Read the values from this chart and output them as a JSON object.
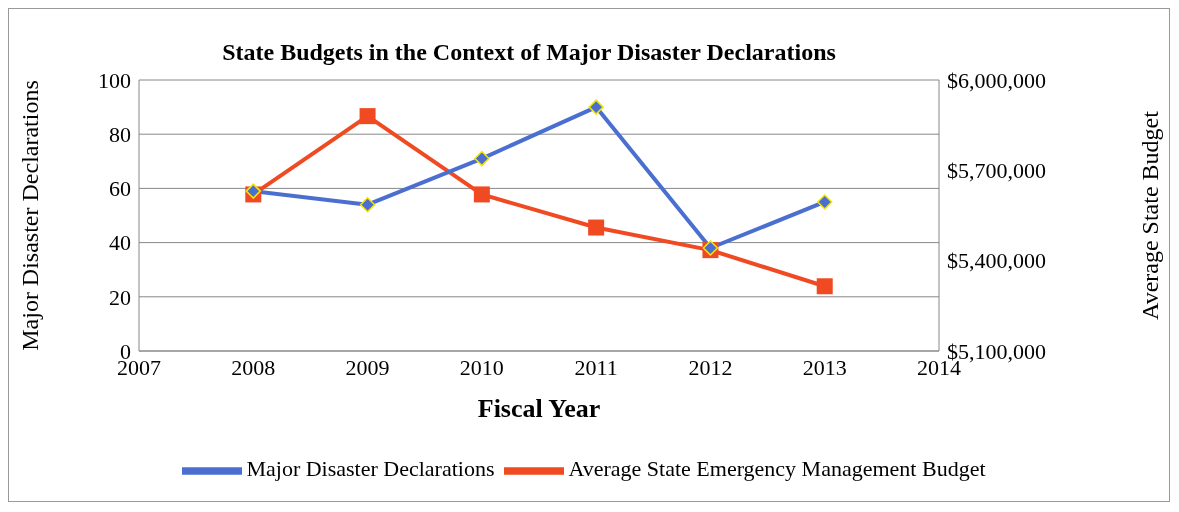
{
  "chart_data": {
    "type": "line",
    "title": "State Budgets in the Context of Major Disaster Declarations",
    "xlabel": "Fiscal Year",
    "ylabel": "Major Disaster Declarations",
    "y2label": "Average State Budget",
    "x": [
      2008,
      2009,
      2010,
      2011,
      2012,
      2013
    ],
    "series": [
      {
        "name": "Major Disaster Declarations",
        "color": "#4a6fd0",
        "marker": "diamond",
        "values": [
          59,
          54,
          71,
          90,
          38,
          55
        ]
      },
      {
        "name": "Average State Emergency Management Budget",
        "color": "#f04a23",
        "marker": "square",
        "axis": "y2",
        "values": [
          5620000,
          5880000,
          5620000,
          5510000,
          5435000,
          5315000
        ]
      }
    ],
    "xlim": [
      2007,
      2014
    ],
    "xticks": [
      2007,
      2008,
      2009,
      2010,
      2011,
      2012,
      2013,
      2014
    ],
    "ylim": [
      0,
      100
    ],
    "yticks": [
      0,
      20,
      40,
      60,
      80,
      100
    ],
    "y2lim": [
      5100000,
      6000000
    ],
    "y2ticks": [
      {
        "value": 5100000,
        "label": "$5,100,000"
      },
      {
        "value": 5400000,
        "label": "$5,400,000"
      },
      {
        "value": 5700000,
        "label": "$5,700,000"
      },
      {
        "value": 6000000,
        "label": "$6,000,000"
      }
    ],
    "grid": "y",
    "legend": "bottom",
    "line_style": "solid"
  }
}
